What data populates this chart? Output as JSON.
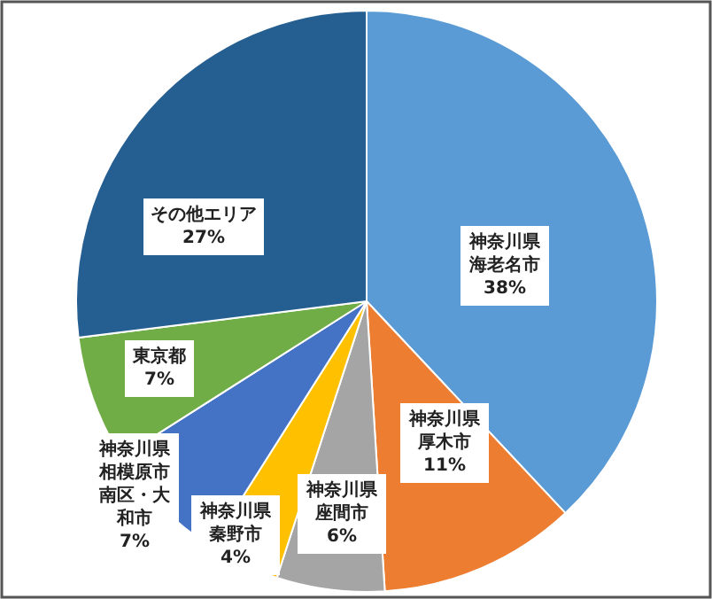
{
  "chart_data": {
    "type": "pie",
    "categories": [
      "神奈川県海老名市",
      "神奈川県厚木市",
      "神奈川県座間市",
      "神奈川県秦野市",
      "神奈川県相模原市南区・大和市",
      "東京都",
      "その他エリア"
    ],
    "values": [
      38,
      11,
      6,
      4,
      7,
      7,
      27
    ],
    "colors": [
      "#5b9bd5",
      "#ed7d31",
      "#a5a5a5",
      "#ffc000",
      "#4472c4",
      "#70ad47",
      "#255e91"
    ],
    "value_labels": [
      "38%",
      "11%",
      "6%",
      "4%",
      "7%",
      "7%",
      "27%"
    ]
  }
}
